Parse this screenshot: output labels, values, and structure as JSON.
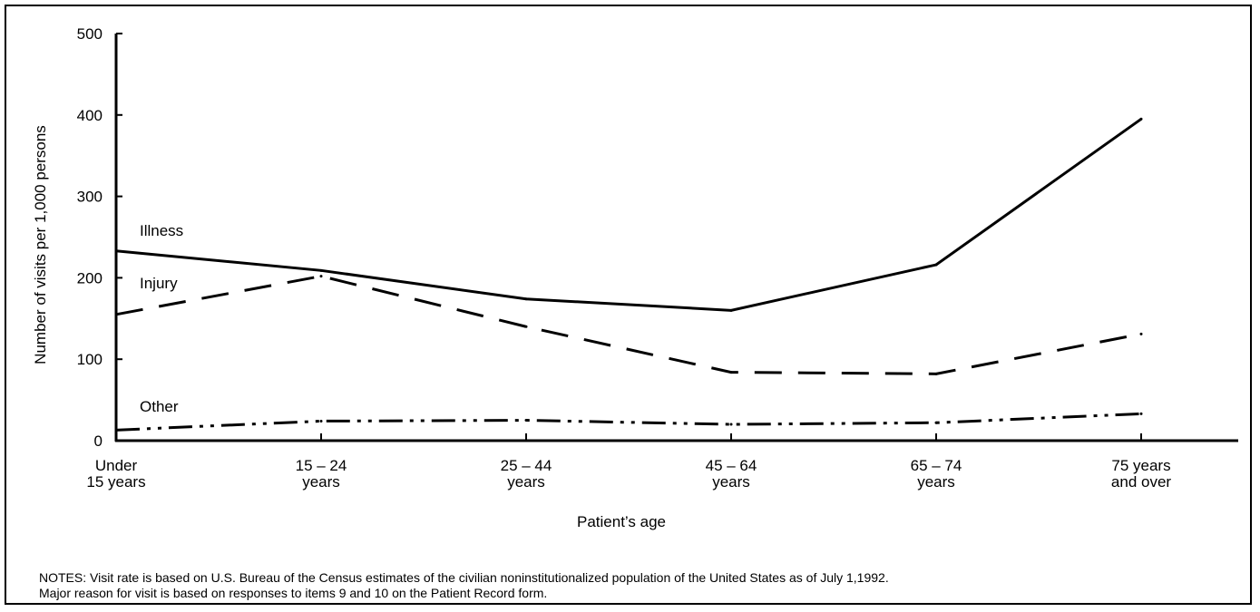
{
  "chart_data": {
    "type": "line",
    "title": "",
    "xlabel": "Patient’s age",
    "ylabel": "Number of visits per 1,000 persons",
    "categories": [
      [
        "Under",
        "15 years"
      ],
      [
        "15 – 24",
        "years"
      ],
      [
        "25 – 44",
        "years"
      ],
      [
        "45 – 64",
        "years"
      ],
      [
        "65 – 74",
        "years"
      ],
      [
        "75 years",
        "and over"
      ]
    ],
    "yticks": [
      0,
      100,
      200,
      300,
      400,
      500
    ],
    "ylim": [
      0,
      500
    ],
    "grid": false,
    "series": [
      {
        "name": "Illness",
        "values": [
          233,
          209,
          174,
          160,
          216,
          395
        ],
        "style": "solid"
      },
      {
        "name": "Injury",
        "values": [
          155,
          202,
          140,
          84,
          82,
          131
        ],
        "style": "dashed"
      },
      {
        "name": "Other",
        "values": [
          13,
          24,
          25,
          20,
          22,
          33
        ],
        "style": "dash-dot-dot"
      }
    ],
    "colors": {
      "line": "#000000",
      "background": "#ffffff"
    }
  },
  "notes": {
    "line1": "NOTES: Visit rate is based on U.S. Bureau of the Census estimates of the civilian noninstitutionalized population of the United States as of July 1,1992.",
    "line2": "Major reason for visit is based on responses to items 9 and 10 on the Patient Record form."
  }
}
